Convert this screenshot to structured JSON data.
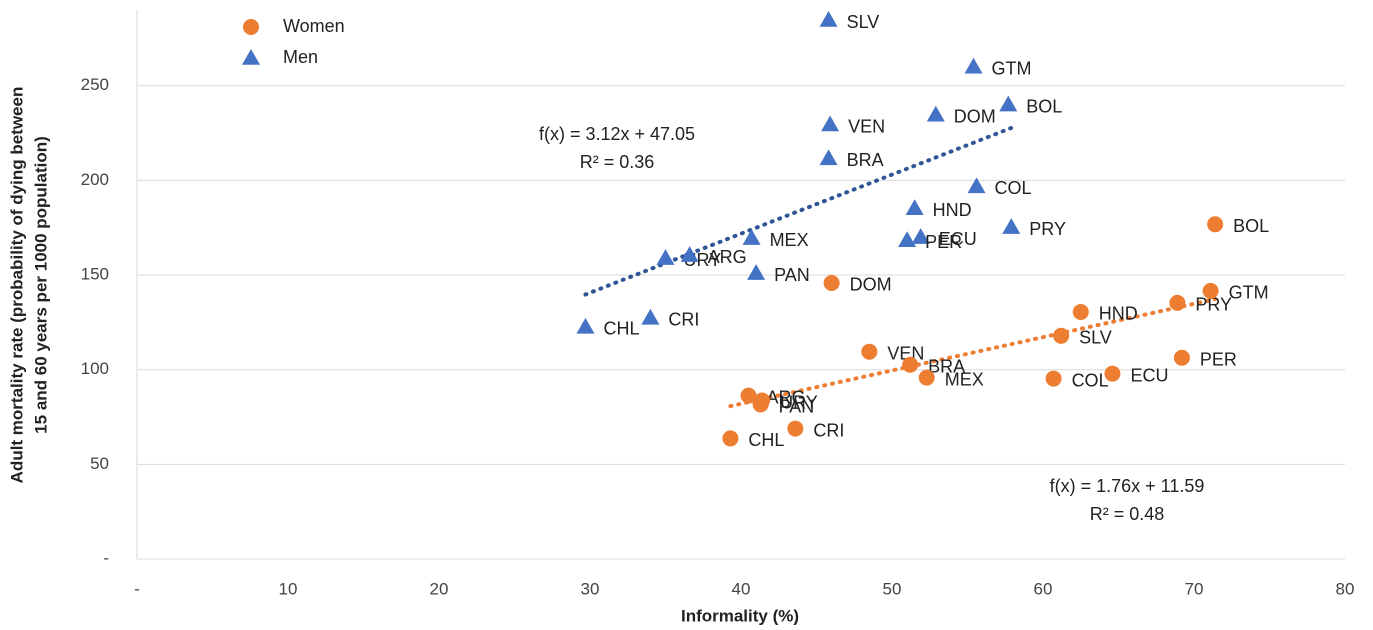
{
  "chart_data": {
    "type": "scatter",
    "xlabel": "Informality (%)",
    "ylabel": [
      "Adult mortality rate (probability of dying between",
      "15 and 60 years per 1000 population)"
    ],
    "xlim": [
      0,
      80
    ],
    "ylim": [
      0,
      290
    ],
    "xticks": [
      {
        "value": 0,
        "label": "-"
      },
      10,
      20,
      30,
      40,
      50,
      60,
      70,
      80
    ],
    "yticks": [
      {
        "value": 0,
        "label": "-"
      },
      50,
      100,
      150,
      200,
      250
    ],
    "grid": true,
    "legend": "top-left",
    "series": [
      {
        "name": "Women",
        "color": "#ED7D31",
        "marker": "circle",
        "labels": [
          "BOL",
          "DOM",
          "PRY",
          "GTM",
          "HND",
          "SLV",
          "VEN",
          "BRA",
          "PER",
          "MEX",
          "COL",
          "ECU",
          "ARG",
          "URY",
          "PAN",
          "CRI",
          "CHL"
        ],
        "x": [
          71.4,
          46.0,
          68.9,
          71.1,
          62.5,
          61.2,
          48.5,
          51.2,
          69.2,
          52.3,
          60.7,
          64.6,
          40.5,
          41.4,
          41.3,
          43.6,
          39.3
        ],
        "values": [
          176.8,
          145.8,
          135.3,
          141.6,
          130.5,
          117.9,
          109.5,
          102.6,
          106.3,
          95.8,
          95.3,
          97.9,
          86.3,
          83.7,
          81.6,
          68.9,
          63.7
        ],
        "trendline": {
          "color": "#ED7D31",
          "slope": 1.76,
          "intercept": 11.59,
          "equation": "f(x) = 1.76x + 11.59",
          "r2": "R² = 0.48"
        }
      },
      {
        "name": "Men",
        "color": "#4472C4",
        "marker": "triangle",
        "labels": [
          "SLV",
          "GTM",
          "BOL",
          "DOM",
          "VEN",
          "BRA",
          "COL",
          "HND",
          "PRY",
          "MEX",
          "ECU",
          "PER",
          "URY",
          "ARG",
          "PAN",
          "CRI",
          "CHL"
        ],
        "x": [
          45.8,
          55.4,
          57.7,
          52.9,
          45.9,
          45.8,
          55.6,
          51.5,
          57.9,
          40.7,
          51.9,
          51.0,
          35.0,
          36.6,
          41.0,
          34.0,
          29.7
        ],
        "values": [
          284.7,
          260,
          240,
          234.7,
          229.5,
          211.6,
          196.8,
          185.3,
          175.3,
          169.5,
          170,
          168.4,
          158.9,
          160.5,
          151,
          127.4,
          122.6
        ],
        "trendline": {
          "color": "#2F5597",
          "slope": 3.12,
          "intercept": 47.05,
          "equation": "f(x) = 3.12x + 47.05",
          "r2": "R² = 0.36"
        }
      }
    ]
  }
}
